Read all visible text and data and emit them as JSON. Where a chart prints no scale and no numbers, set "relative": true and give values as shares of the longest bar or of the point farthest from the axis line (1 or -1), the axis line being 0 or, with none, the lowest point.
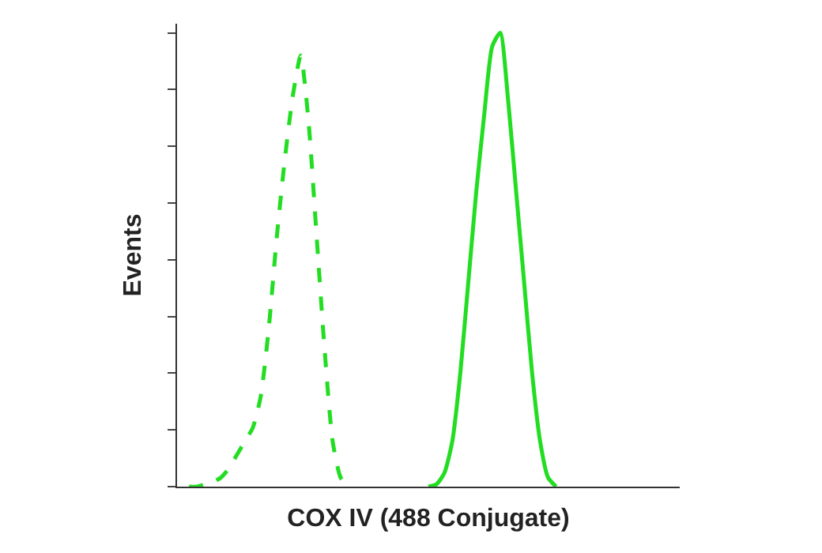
{
  "chart_data": {
    "type": "line",
    "relative": true,
    "xlabel": "COX IV (488 Conjugate)",
    "ylabel": "Events",
    "categories": [
      null,
      null,
      null,
      null,
      null,
      null,
      null,
      null,
      null,
      null,
      null,
      null,
      null,
      null,
      null,
      null,
      null,
      null,
      null,
      null,
      null,
      null,
      null,
      null,
      null,
      null,
      null,
      null,
      null,
      null,
      null,
      null,
      null,
      null,
      null,
      null,
      null,
      null,
      null,
      null,
      null,
      null,
      null,
      null,
      null,
      null,
      null,
      null,
      null,
      null,
      null,
      null,
      null,
      null,
      null,
      null,
      null,
      null,
      null,
      null,
      null,
      null,
      null
    ],
    "series": [
      {
        "color": "#22dd22",
        "line_style": "dashed",
        "values": [
          null,
          0,
          0,
          0.005,
          0.01,
          0.02,
          0.04,
          0.07,
          0.1,
          0.13,
          0.2,
          0.35,
          0.55,
          0.72,
          0.86,
          0.95,
          0.8,
          0.55,
          0.3,
          0.1,
          0.02,
          0,
          null,
          null,
          null,
          null,
          null,
          null,
          null,
          null,
          null,
          null,
          null,
          null,
          null,
          null,
          null,
          null,
          null,
          null,
          null,
          null,
          null,
          null,
          null,
          null,
          null,
          null,
          null,
          null,
          null,
          null,
          null,
          null,
          null,
          null,
          null,
          null,
          null,
          null,
          null,
          null,
          null
        ]
      },
      {
        "color": "#22dd22",
        "line_style": "solid",
        "values": [
          null,
          null,
          null,
          null,
          null,
          null,
          null,
          null,
          null,
          null,
          null,
          null,
          null,
          null,
          null,
          null,
          null,
          null,
          null,
          null,
          null,
          null,
          null,
          null,
          null,
          null,
          null,
          null,
          null,
          null,
          null,
          0,
          0.005,
          0.03,
          0.1,
          0.25,
          0.45,
          0.65,
          0.82,
          0.97,
          1,
          0.85,
          0.65,
          0.45,
          0.25,
          0.1,
          0.02,
          0,
          null,
          null,
          null,
          null,
          null,
          null,
          null,
          null,
          null,
          null,
          null,
          null,
          null,
          null,
          null
        ]
      }
    ]
  }
}
